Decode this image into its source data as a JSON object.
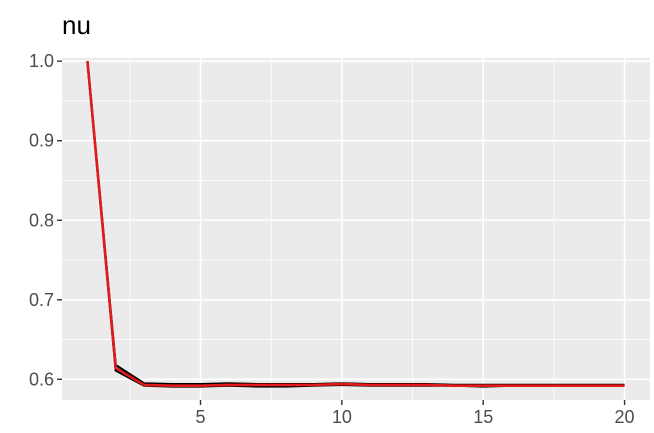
{
  "chart_data": {
    "type": "line",
    "title": "nu",
    "xlabel": "",
    "ylabel": "",
    "xlim": [
      0.1,
      20.9
    ],
    "ylim": [
      0.574,
      1.004
    ],
    "x_major_ticks": [
      5,
      10,
      15,
      20
    ],
    "x_minor_ticks": [
      2.5,
      7.5,
      12.5,
      17.5
    ],
    "y_major_ticks": [
      0.6,
      0.7,
      0.8,
      0.9,
      1.0
    ],
    "y_minor_ticks": [
      0.65,
      0.75,
      0.85,
      0.95
    ],
    "x_tick_labels": [
      "5",
      "10",
      "15",
      "20"
    ],
    "y_tick_labels": [
      "0.6",
      "0.7",
      "0.8",
      "0.9",
      "1.0"
    ],
    "grid": true,
    "legend": "none",
    "series": [
      {
        "color": "#000000",
        "x": [
          1,
          2,
          3,
          4,
          5,
          6,
          7,
          8,
          9,
          10,
          11,
          12,
          13,
          14,
          15,
          16,
          17,
          18,
          19,
          20
        ],
        "y": [
          1.0,
          0.611,
          0.592,
          0.591,
          0.591,
          0.592,
          0.591,
          0.591,
          0.592,
          0.593,
          0.592,
          0.592,
          0.592,
          0.592,
          0.591,
          0.592,
          0.592,
          0.592,
          0.592,
          0.592
        ]
      },
      {
        "color": "#000000",
        "x": [
          1,
          2,
          3,
          4,
          5,
          6,
          7,
          8,
          9,
          10,
          11,
          12,
          13,
          14,
          15,
          16,
          17,
          18,
          19,
          20
        ],
        "y": [
          1.0,
          0.618,
          0.595,
          0.594,
          0.594,
          0.595,
          0.594,
          0.594,
          0.594,
          0.595,
          0.594,
          0.594,
          0.594,
          0.593,
          0.593,
          0.593,
          0.593,
          0.593,
          0.593,
          0.593
        ]
      },
      {
        "color": "#e31a1c",
        "x": [
          1,
          2,
          3,
          4,
          5,
          6,
          7,
          8,
          9,
          10,
          11,
          12,
          13,
          14,
          15,
          16,
          17,
          18,
          19,
          20
        ],
        "y": [
          1.0,
          0.614,
          0.593,
          0.592,
          0.592,
          0.593,
          0.593,
          0.593,
          0.593,
          0.594,
          0.593,
          0.593,
          0.593,
          0.592,
          0.592,
          0.592,
          0.592,
          0.592,
          0.592,
          0.592
        ]
      }
    ]
  }
}
